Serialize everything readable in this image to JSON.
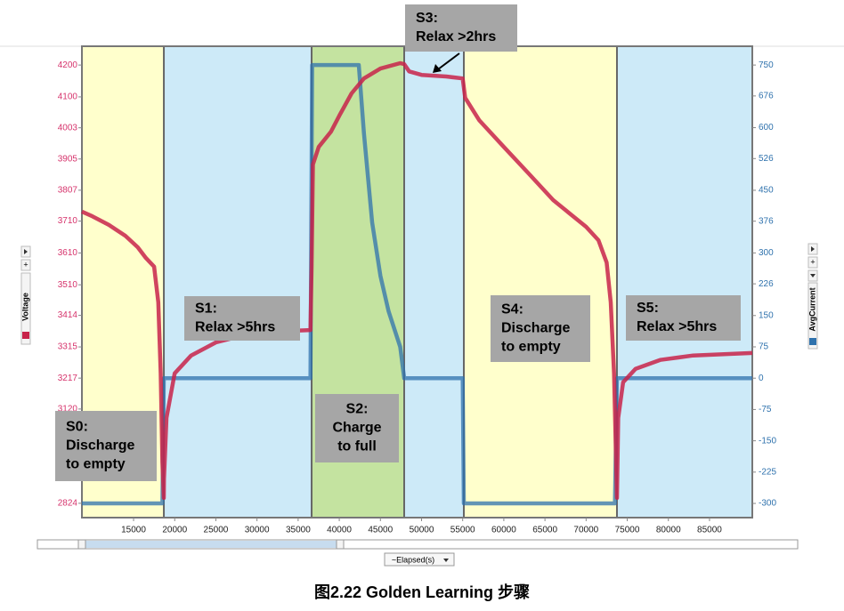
{
  "chart_data": {
    "type": "line",
    "caption": "图2.22 Golden Learning 步骤",
    "xlabel": "~Elapsed(s)",
    "ylabel": "Voltage",
    "y2label": "AvgCurrent",
    "xlim": [
      8720,
      90200
    ],
    "ylim": [
      2779,
      4259
    ],
    "y2lim": [
      -334,
      795
    ],
    "xticks": [
      15000,
      20000,
      25000,
      30000,
      35000,
      40000,
      45000,
      50000,
      55000,
      60000,
      65000,
      70000,
      75000,
      80000,
      85000
    ],
    "yticks": [
      4200,
      4100,
      4003,
      3905,
      3807,
      3710,
      3610,
      3510,
      3414,
      3315,
      3217,
      3120,
      2824
    ],
    "y2ticks": [
      750,
      676,
      600,
      526,
      450,
      376,
      300,
      226,
      150,
      75,
      0,
      -75,
      -150,
      -225,
      -300
    ],
    "regions": [
      {
        "start": 8720,
        "end": 18680,
        "color": "#ffffcc"
      },
      {
        "start": 18680,
        "end": 36640,
        "color": "#cdeaf8"
      },
      {
        "start": 36640,
        "end": 47890,
        "color": "#c4e3a0"
      },
      {
        "start": 47890,
        "end": 55140,
        "color": "#cdeaf8"
      },
      {
        "start": 55140,
        "end": 73750,
        "color": "#ffffcc"
      },
      {
        "start": 73750,
        "end": 90200,
        "color": "#cdeaf8"
      }
    ],
    "annotations": [
      {
        "lines": [
          "S0:",
          "Discharge",
          "to empty"
        ]
      },
      {
        "lines": [
          "S1:",
          "Relax >5hrs"
        ]
      },
      {
        "lines": [
          "S2:",
          "Charge",
          "to full"
        ]
      },
      {
        "lines": [
          "S3:",
          "Relax >2hrs"
        ]
      },
      {
        "lines": [
          "S4:",
          "Discharge",
          "to empty"
        ]
      },
      {
        "lines": [
          "S5:",
          "Relax >5hrs"
        ]
      }
    ],
    "series": [
      {
        "name": "Voltage",
        "color": "#c8234a",
        "axis": "y",
        "x": [
          8720,
          10000,
          12000,
          14000,
          15500,
          16500,
          17500,
          18000,
          18300,
          18500,
          18680,
          18700,
          19000,
          20000,
          22000,
          25000,
          28000,
          32000,
          36500,
          36640,
          36800,
          37500,
          39000,
          40000,
          41500,
          43000,
          45000,
          47400,
          47890,
          48500,
          50000,
          53000,
          55000,
          55300,
          57000,
          60000,
          63000,
          66000,
          68000,
          70000,
          71500,
          72500,
          73000,
          73400,
          73750,
          73900,
          74500,
          76000,
          79000,
          83000,
          90200
        ],
        "values": [
          3740,
          3725,
          3698,
          3664,
          3628,
          3594,
          3567,
          3455,
          3232,
          2953,
          2841,
          2900,
          3092,
          3232,
          3288,
          3329,
          3349,
          3363,
          3368,
          3567,
          3888,
          3943,
          3991,
          4041,
          4111,
          4158,
          4189,
          4206,
          4203,
          4180,
          4169,
          4164,
          4158,
          4097,
          4027,
          3943,
          3860,
          3776,
          3734,
          3692,
          3650,
          3580,
          3455,
          3232,
          2841,
          3092,
          3204,
          3246,
          3274,
          3288,
          3296
        ]
      },
      {
        "name": "AvgCurrent",
        "color": "#2f72ad",
        "axis": "y2",
        "x": [
          8720,
          18500,
          18680,
          36500,
          36700,
          42370,
          43000,
          44000,
          45000,
          46000,
          47400,
          47890,
          55000,
          55140,
          73500,
          73750,
          90200
        ],
        "values": [
          -300,
          -300,
          0,
          0,
          750,
          750,
          586,
          373,
          245,
          160,
          75,
          0,
          0,
          -300,
          -300,
          0,
          0
        ]
      }
    ]
  }
}
